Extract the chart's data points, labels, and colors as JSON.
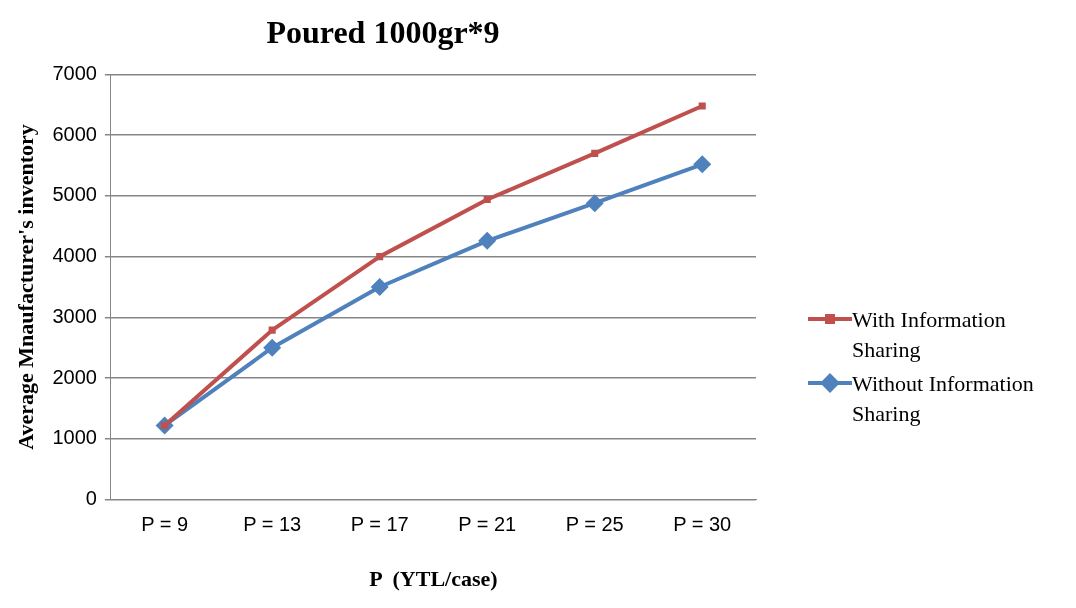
{
  "chart_data": {
    "type": "line",
    "title": "Poured 1000gr*9",
    "xlabel": "P  (YTL/case)",
    "ylabel": "Average Mnaufacturer's inventory",
    "categories": [
      "P = 9",
      "P = 13",
      "P = 17",
      "P = 21",
      "P = 25",
      "P = 30"
    ],
    "series": [
      {
        "name": "With Information Sharing",
        "color": "#c0504d",
        "marker": "square",
        "values": [
          1220,
          2790,
          4000,
          4940,
          5700,
          6480
        ]
      },
      {
        "name": "Without Information Sharing",
        "color": "#4f81bd",
        "marker": "diamond",
        "values": [
          1220,
          2500,
          3500,
          4260,
          4880,
          5520
        ]
      }
    ],
    "ylim": [
      0,
      7000
    ],
    "yticks": [
      0,
      1000,
      2000,
      3000,
      4000,
      5000,
      6000,
      7000
    ],
    "grid": "y",
    "legend": "right"
  }
}
